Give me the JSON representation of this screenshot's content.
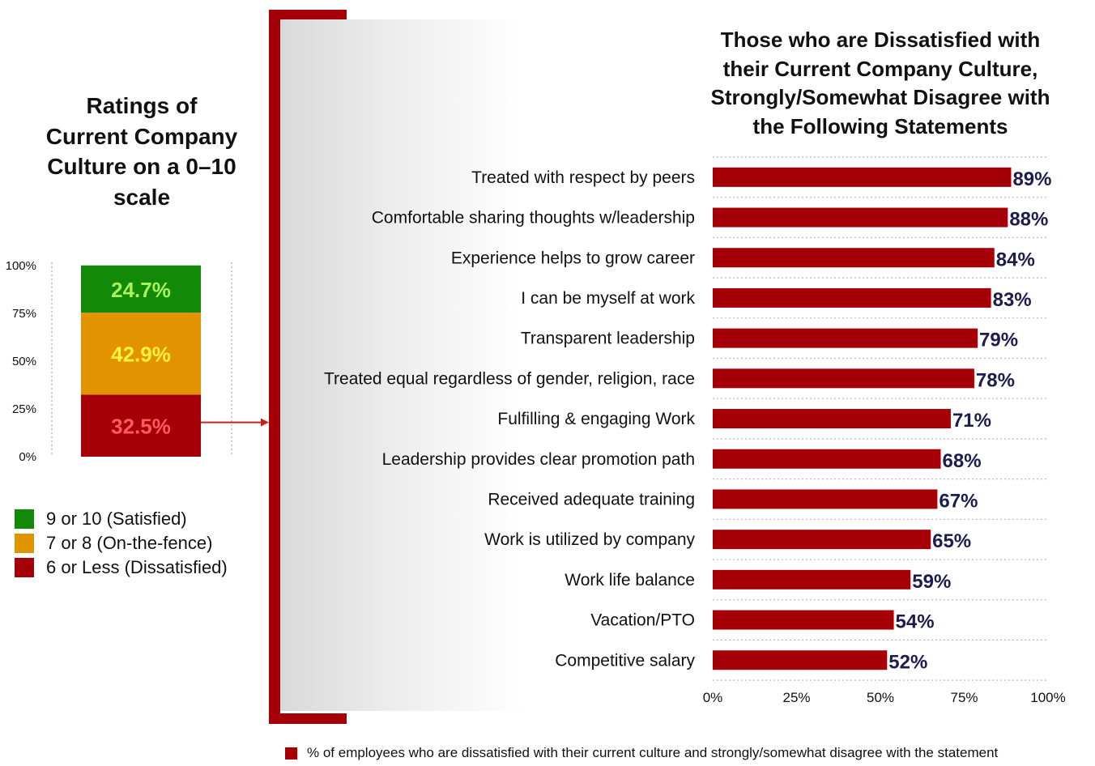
{
  "colors": {
    "bar": "#a50008",
    "satisfied": "#138a07",
    "fence": "#e29300",
    "dissatisfied": "#a50008",
    "label_satisfied": "#a8f25c",
    "label_fence": "#fff23a",
    "label_dissatisfied": "#ff5c5c",
    "value_text": "#1c1c4e"
  },
  "left_panel": {
    "title": "Ratings of Current Company Culture on a 0–10 scale",
    "legend": [
      {
        "label": "9 or 10 (Satisfied)",
        "color": "#138a07"
      },
      {
        "label": "7 or 8 (On-the-fence)",
        "color": "#e29300"
      },
      {
        "label": "6 or Less (Dissatisfied)",
        "color": "#a50008"
      }
    ]
  },
  "right_panel": {
    "title": "Those who are Dissatisfied with their Current Company Culture, Strongly/Somewhat Disagree with the Following Statements",
    "legend_label": "% of employees who are dissatisfied with their current culture and strongly/somewhat disagree with the statement"
  },
  "chart_data": [
    {
      "type": "bar",
      "orientation": "vertical-stacked",
      "title": "Ratings of Current Company Culture on a 0–10 scale",
      "ylim": [
        0,
        100
      ],
      "yticks": [
        "0%",
        "25%",
        "50%",
        "75%",
        "100%"
      ],
      "series": [
        {
          "name": "6 or Less (Dissatisfied)",
          "values": [
            32.5
          ],
          "label": "32.5%"
        },
        {
          "name": "7 or 8 (On-the-fence)",
          "values": [
            42.9
          ],
          "label": "42.9%"
        },
        {
          "name": "9 or 10 (Satisfied)",
          "values": [
            24.7
          ],
          "label": "24.7%"
        }
      ]
    },
    {
      "type": "bar",
      "orientation": "horizontal",
      "title": "Those who are Dissatisfied with their Current Company Culture, Strongly/Somewhat Disagree with the Following Statements",
      "xlim": [
        0,
        100
      ],
      "xticks": [
        "0%",
        "25%",
        "50%",
        "75%",
        "100%"
      ],
      "grid": true,
      "legend": "bottom",
      "series": [
        {
          "name": "% of employees who are dissatisfied with their current culture and strongly/somewhat disagree with the statement"
        }
      ],
      "categories": [
        "Treated with respect by peers",
        "Comfortable sharing thoughts w/leadership",
        "Experience helps to grow career",
        "I can be myself at work",
        "Transparent leadership",
        "Treated equal regardless of gender, religion, race",
        "Fulfilling & engaging Work",
        "Leadership provides clear promotion path",
        "Received adequate training",
        "Work is utilized by company",
        "Work life balance",
        "Vacation/PTO",
        "Competitive salary"
      ],
      "values": [
        89,
        88,
        84,
        83,
        79,
        78,
        71,
        68,
        67,
        65,
        59,
        54,
        52
      ],
      "value_labels": [
        "89%",
        "88%",
        "84%",
        "83%",
        "79%",
        "78%",
        "71%",
        "68%",
        "67%",
        "65%",
        "59%",
        "54%",
        "52%"
      ]
    }
  ]
}
